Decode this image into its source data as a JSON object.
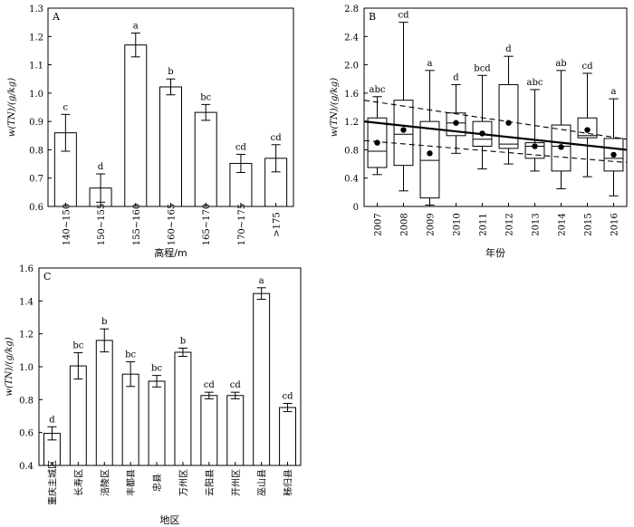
{
  "chart_data": [
    {
      "panel": "A",
      "type": "bar",
      "ylabel": "w(TN)/(g/kg)",
      "xlabel": "高程/m",
      "ylim": [
        0.6,
        1.3
      ],
      "yticks": [
        "0.6",
        "0.7",
        "0.8",
        "0.9",
        "1.0",
        "1.1",
        "1.2",
        "1.3"
      ],
      "categories": [
        "140~150",
        "150~155",
        "155~160",
        "160~165",
        "165~170",
        "170~175",
        ">175"
      ],
      "values": [
        0.86,
        0.665,
        1.17,
        1.022,
        0.932,
        0.752,
        0.77
      ],
      "errors": [
        0.065,
        0.05,
        0.042,
        0.028,
        0.028,
        0.032,
        0.048
      ],
      "letters": [
        "c",
        "d",
        "a",
        "b",
        "bc",
        "cd",
        "cd"
      ]
    },
    {
      "panel": "B",
      "type": "box",
      "ylabel": "w(TN)/(g/kg)",
      "xlabel": "年份",
      "ylim": [
        0,
        2.8
      ],
      "yticks": [
        "0",
        "0.4",
        "0.8",
        "1.2",
        "1.6",
        "2.0",
        "2.4",
        "2.8"
      ],
      "categories": [
        "2007",
        "2008",
        "2009",
        "2010",
        "2011",
        "2012",
        "2013",
        "2014",
        "2015",
        "2016"
      ],
      "boxes": [
        {
          "min": 0.45,
          "q1": 0.55,
          "median": 0.78,
          "q3": 1.25,
          "max": 1.55,
          "mean": 0.9
        },
        {
          "min": 0.22,
          "q1": 0.58,
          "median": 1.02,
          "q3": 1.5,
          "max": 2.6,
          "mean": 1.08
        },
        {
          "min": 0.02,
          "q1": 0.12,
          "median": 0.65,
          "q3": 1.2,
          "max": 1.92,
          "mean": 0.75
        },
        {
          "min": 0.75,
          "q1": 1.0,
          "median": 1.18,
          "q3": 1.32,
          "max": 1.72,
          "mean": 1.18
        },
        {
          "min": 0.53,
          "q1": 0.85,
          "median": 0.95,
          "q3": 1.2,
          "max": 1.85,
          "mean": 1.03
        },
        {
          "min": 0.6,
          "q1": 0.82,
          "median": 0.88,
          "q3": 1.72,
          "max": 2.12,
          "mean": 1.18
        },
        {
          "min": 0.5,
          "q1": 0.68,
          "median": 0.85,
          "q3": 0.9,
          "max": 1.65,
          "mean": 0.85
        },
        {
          "min": 0.25,
          "q1": 0.5,
          "median": 0.85,
          "q3": 1.15,
          "max": 1.92,
          "mean": 0.84
        },
        {
          "min": 0.42,
          "q1": 0.97,
          "median": 1.0,
          "q3": 1.25,
          "max": 1.88,
          "mean": 1.08
        },
        {
          "min": 0.15,
          "q1": 0.5,
          "median": 0.68,
          "q3": 0.96,
          "max": 1.52,
          "mean": 0.73
        }
      ],
      "letters": [
        "abc",
        "cd",
        "a",
        "d",
        "bcd",
        "d",
        "abc",
        "ab",
        "cd",
        "a"
      ],
      "trend": {
        "start": 1.2,
        "end": 0.8
      },
      "ci_upper": {
        "start": 1.5,
        "end": 0.95
      },
      "ci_lower": {
        "start": 0.93,
        "end": 0.62
      }
    },
    {
      "panel": "C",
      "type": "bar",
      "ylabel": "w(TN)/(g/kg)",
      "xlabel": "地区",
      "ylim": [
        0.4,
        1.6
      ],
      "yticks": [
        "0.4",
        "0.6",
        "0.8",
        "1.0",
        "1.2",
        "1.4",
        "1.6"
      ],
      "categories": [
        "重庆主城区",
        "长寿区",
        "涪陵区",
        "丰都县",
        "忠县",
        "万州区",
        "云阳县",
        "开州区",
        "巫山县",
        "秭归县"
      ],
      "values": [
        0.595,
        1.005,
        1.16,
        0.955,
        0.912,
        1.088,
        0.825,
        0.825,
        1.445,
        0.752
      ],
      "errors": [
        0.04,
        0.08,
        0.07,
        0.075,
        0.035,
        0.025,
        0.02,
        0.02,
        0.035,
        0.025
      ],
      "letters": [
        "d",
        "bc",
        "b",
        "bc",
        "bc",
        "b",
        "cd",
        "cd",
        "a",
        "cd"
      ]
    }
  ]
}
